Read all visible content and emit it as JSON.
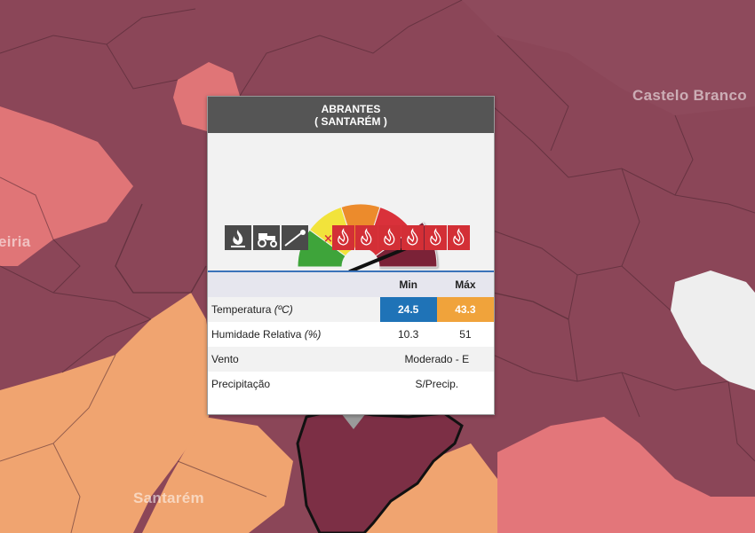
{
  "map": {
    "place_labels": [
      "Castelo Branco",
      "eiria",
      "Santarém"
    ]
  },
  "popup": {
    "municipality": "ABRANTES",
    "district": "( SANTARÉM )",
    "risk_level": 5,
    "risk_colors": [
      "#3ea43a",
      "#f2e33b",
      "#ec8b2c",
      "#d9313a",
      "#7b2237"
    ],
    "allowed_icons": [
      "campfire-icon",
      "tractor-icon",
      "pruning-icon"
    ],
    "forbidden_icons": [
      "fire-icon",
      "party-lights-icon",
      "bonfire-icon",
      "barbecue-icon",
      "smoking-icon",
      "fireworks-icon"
    ],
    "table": {
      "header_min": "Min",
      "header_max": "Máx",
      "temperature_label": "Temperatura",
      "temperature_unit": "(ºC)",
      "temperature_min": "24.5",
      "temperature_max": "43.3",
      "humidity_label": "Humidade Relativa",
      "humidity_unit": "(%)",
      "humidity_min": "10.3",
      "humidity_max": "51",
      "wind_label": "Vento",
      "wind_value": "Moderado - E",
      "precip_label": "Precipitação",
      "precip_value": "S/Precip."
    }
  }
}
